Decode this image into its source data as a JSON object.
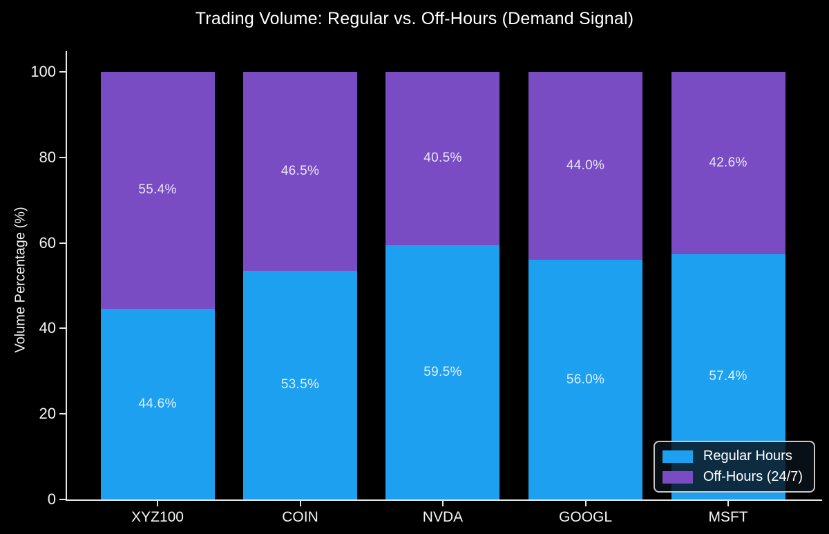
{
  "chart_data": {
    "type": "bar",
    "stacked": true,
    "title": "Trading Volume: Regular vs. Off-Hours (Demand Signal)",
    "ylabel": "Volume Percentage (%)",
    "xlabel": "",
    "categories": [
      "XYZ100",
      "COIN",
      "NVDA",
      "GOOGL",
      "MSFT"
    ],
    "series": [
      {
        "name": "Regular Hours",
        "color": "#1ea0f0",
        "label_color": "#dcf0fc",
        "values": [
          44.6,
          53.5,
          59.5,
          56.0,
          57.4
        ],
        "labels": [
          "44.6%",
          "53.5%",
          "59.5%",
          "56.0%",
          "57.4%"
        ]
      },
      {
        "name": "Off-Hours (24/7)",
        "color": "#7a4cc4",
        "label_color": "#eae3f7",
        "values": [
          55.4,
          46.5,
          40.5,
          44.0,
          42.6
        ],
        "labels": [
          "55.4%",
          "46.5%",
          "40.5%",
          "44.0%",
          "42.6%"
        ]
      }
    ],
    "ylim": [
      0,
      100
    ],
    "yticks": [
      "0",
      "20",
      "40",
      "60",
      "80",
      "100"
    ],
    "legend": {
      "position": "lower right",
      "entries": [
        "Regular Hours",
        "Off-Hours (24/7)"
      ]
    },
    "grid": false,
    "colors": {
      "background": "#000000",
      "axis": "#e8e8e8",
      "text": "#f5f5f5"
    }
  }
}
